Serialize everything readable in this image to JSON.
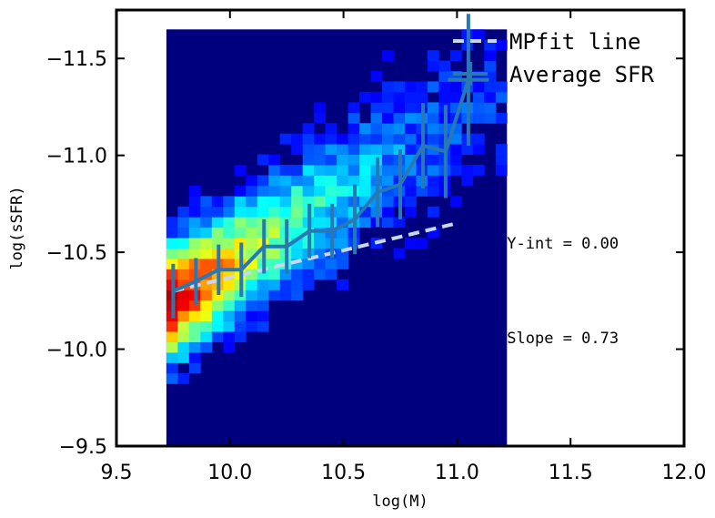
{
  "chart_data": {
    "type": "heatmap",
    "xlabel": "log(M)",
    "ylabel": "log(sSFR)",
    "xlim": [
      9.5,
      12.0
    ],
    "ylim": [
      -9.5,
      -11.75
    ],
    "y_inverted": true,
    "xticks": [
      9.5,
      10.0,
      10.5,
      11.0,
      11.5,
      12.0
    ],
    "xtick_labels": [
      "9.5",
      "10.0",
      "10.5",
      "11.0",
      "11.5",
      "12.0"
    ],
    "yticks": [
      -9.5,
      -10.0,
      -10.5,
      -11.0,
      -11.5
    ],
    "ytick_labels": [
      "−9.5",
      "−10.0",
      "−10.5",
      "−11.0",
      "−11.5"
    ],
    "grid": false,
    "legend_position": "top-right",
    "heatmap": {
      "x_range": [
        9.72,
        11.22
      ],
      "y_range": [
        -9.5,
        -11.65
      ],
      "nx": 30,
      "ny": 40,
      "colormap": "jet",
      "background_color": "#00007f"
    },
    "series": [
      {
        "name": "MPfit line",
        "kind": "line",
        "style": "dashed",
        "color": "#c8d8f0",
        "x": [
          9.75,
          11.0
        ],
        "y": [
          -10.3,
          -10.65
        ]
      },
      {
        "name": "Average SFR",
        "kind": "errorbar-line",
        "color": "#2878b4",
        "x": [
          9.75,
          9.85,
          9.95,
          10.05,
          10.15,
          10.25,
          10.35,
          10.45,
          10.55,
          10.65,
          10.75,
          10.85,
          10.95,
          11.05
        ],
        "y": [
          -10.3,
          -10.35,
          -10.41,
          -10.41,
          -10.53,
          -10.53,
          -10.61,
          -10.61,
          -10.67,
          -10.81,
          -10.85,
          -11.05,
          -11.02,
          -11.39
        ],
        "yerr": [
          0.14,
          0.12,
          0.13,
          0.14,
          0.14,
          0.14,
          0.14,
          0.14,
          0.18,
          0.18,
          0.18,
          0.22,
          0.24,
          0.34
        ],
        "xerr": [
          0,
          0,
          0,
          0,
          0,
          0,
          0,
          0,
          0,
          0,
          0,
          0,
          0,
          0.09
        ]
      }
    ],
    "annotations": [
      {
        "text": "Y-int = 0.00",
        "x": 11.22,
        "y": -10.52
      },
      {
        "text": "Slope = 0.73",
        "x": 11.22,
        "y": -10.03
      }
    ]
  }
}
